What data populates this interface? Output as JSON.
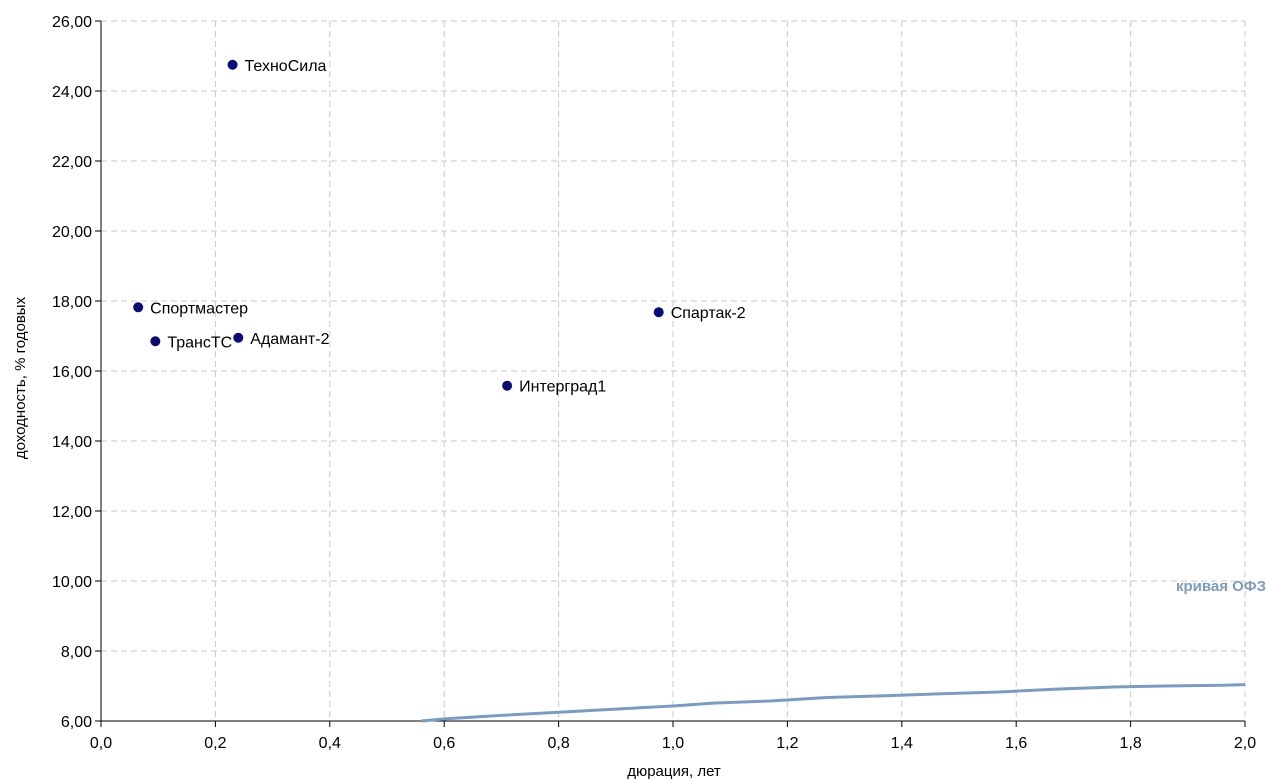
{
  "chart_data": {
    "type": "scatter",
    "xlabel": "дюрация, лет",
    "ylabel": "доходность, % годовых",
    "xlim": [
      0.0,
      2.0
    ],
    "ylim": [
      6.0,
      26.0
    ],
    "x_ticks": [
      "0,0",
      "0,2",
      "0,4",
      "0,6",
      "0,8",
      "1,0",
      "1,2",
      "1,4",
      "1,6",
      "1,8",
      "2,0"
    ],
    "y_ticks": [
      "6,00",
      "8,00",
      "10,00",
      "12,00",
      "14,00",
      "16,00",
      "18,00",
      "20,00",
      "22,00",
      "24,00",
      "26,00"
    ],
    "grid": true,
    "points": [
      {
        "label": "ТехноСила",
        "x": 0.23,
        "y": 24.75
      },
      {
        "label": "Спортмастер",
        "x": 0.065,
        "y": 17.82
      },
      {
        "label": "ТрансТС",
        "x": 0.095,
        "y": 16.85
      },
      {
        "label": "Адамант-2",
        "x": 0.24,
        "y": 16.95
      },
      {
        "label": "Спартак-2",
        "x": 0.975,
        "y": 17.68
      },
      {
        "label": "Интерград1",
        "x": 0.71,
        "y": 15.58
      }
    ],
    "curve": {
      "name": "кривая ОФЗ",
      "x": [
        0.56,
        0.6,
        0.7,
        0.8,
        0.9,
        1.0,
        1.07,
        1.17,
        1.27,
        1.37,
        1.47,
        1.57,
        1.67,
        1.77,
        1.86,
        1.96,
        2.0
      ],
      "y": [
        6.0,
        6.06,
        6.16,
        6.25,
        6.34,
        6.43,
        6.51,
        6.57,
        6.67,
        6.72,
        6.78,
        6.83,
        6.91,
        6.97,
        7.0,
        7.02,
        7.04
      ]
    },
    "colors": {
      "points": "#0a0a7a",
      "curve": "#7a9cc4",
      "grid": "#c8c8c8",
      "axis": "#000000"
    }
  }
}
